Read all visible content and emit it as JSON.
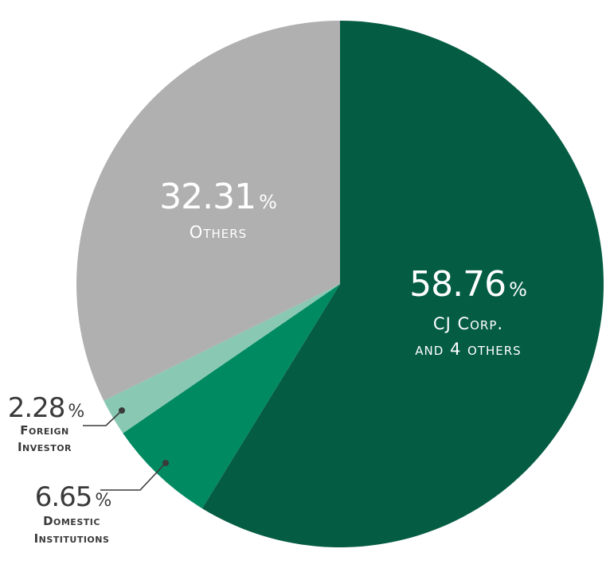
{
  "chart_data": {
    "type": "pie",
    "slices": [
      {
        "label_lines": [
          "CJ Corp.",
          "and 4 others"
        ],
        "value": 58.76,
        "value_text": "58.76",
        "unit": "%",
        "color": "#045c43",
        "label_position": "inside"
      },
      {
        "label_lines": [
          "Domestic",
          "Institutions"
        ],
        "value": 6.65,
        "value_text": "6.65",
        "unit": "%",
        "color": "#008a62",
        "label_position": "outside-left"
      },
      {
        "label_lines": [
          "Foreign",
          "Investor"
        ],
        "value": 2.28,
        "value_text": "2.28",
        "unit": "%",
        "color": "#89c9b3",
        "label_position": "outside-left"
      },
      {
        "label_lines": [
          "Others"
        ],
        "value": 32.31,
        "value_text": "32.31",
        "unit": "%",
        "color": "#b0b0b0",
        "label_position": "inside"
      }
    ],
    "start_angle": "12 o'clock",
    "direction": "clockwise",
    "legend": "none"
  }
}
